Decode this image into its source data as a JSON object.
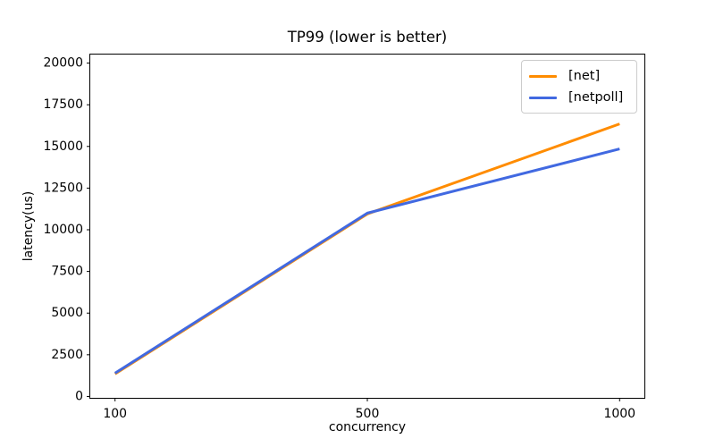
{
  "chart_data": {
    "type": "line",
    "title": "TP99 (lower is better)",
    "xlabel": "concurrency",
    "ylabel": "latency(us)",
    "categories": [
      "100",
      "500",
      "1000"
    ],
    "series": [
      {
        "name": "[net]",
        "color": "#ff8c00",
        "values": [
          1350,
          10950,
          16350
        ]
      },
      {
        "name": "[netpoll]",
        "color": "#4169e1",
        "values": [
          1400,
          11000,
          14850
        ]
      }
    ],
    "yticks": [
      0,
      2500,
      5000,
      7500,
      10000,
      12500,
      15000,
      17500,
      20000
    ],
    "ylim": [
      -110,
      20540
    ],
    "x_margin_frac": 0.05,
    "grid": false,
    "legend_position": "upper right",
    "line_width": 3,
    "spine_color": "#000000",
    "legend_border_color": "#cccccc"
  }
}
